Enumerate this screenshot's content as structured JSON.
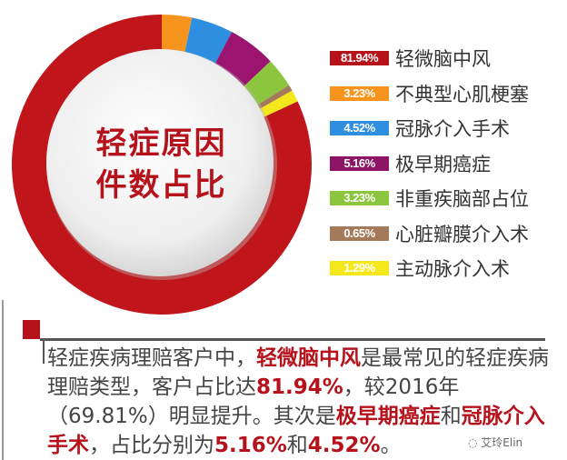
{
  "chart_data": {
    "type": "pie",
    "variant": "donut",
    "title": "轻症原因件数占比",
    "title_lines": [
      "轻症原因",
      "件数占比"
    ],
    "start_angle": "12 o'clock, clockwise",
    "slices": [
      {
        "label": "不典型心肌梗塞",
        "value": 3.23,
        "display": "3.23%",
        "color": "#f7941d"
      },
      {
        "label": "冠脉介入手术",
        "value": 4.52,
        "display": "4.52%",
        "color": "#2e8fe0"
      },
      {
        "label": "极早期癌症",
        "value": 5.16,
        "display": "5.16%",
        "color": "#9b1570"
      },
      {
        "label": "非重疾脑部占位",
        "value": 3.23,
        "display": "3.23%",
        "color": "#8cc63f"
      },
      {
        "label": "心脏瓣膜介入术",
        "value": 0.65,
        "display": "0.65%",
        "color": "#a47a5a"
      },
      {
        "label": "主动脉介入术",
        "value": 1.29,
        "display": "1.29%",
        "color": "#f4e81c"
      },
      {
        "label": "轻微脑中风",
        "value": 81.94,
        "display": "81.94%",
        "color": "#c0161b"
      }
    ],
    "legend": [
      {
        "display": "81.94%",
        "label": "轻微脑中风",
        "color": "#b5121b"
      },
      {
        "display": "3.23%",
        "label": "不典型心肌梗塞",
        "color": "#f7941d"
      },
      {
        "display": "4.52%",
        "label": "冠脉介入手术",
        "color": "#2e8fe0"
      },
      {
        "display": "5.16%",
        "label": "极早期癌症",
        "color": "#8e1466"
      },
      {
        "display": "3.23%",
        "label": "非重疾脑部占位",
        "color": "#8cc63f"
      },
      {
        "display": "0.65%",
        "label": "心脏瓣膜介入术",
        "color": "#a47a5a"
      },
      {
        "display": "1.29%",
        "label": "主动脉介入术",
        "color": "#f4e81c"
      }
    ],
    "legend_position": "right"
  },
  "paragraph": [
    {
      "text": "轻症疾病理赔客户中，",
      "hl": false
    },
    {
      "text": "轻微脑中风",
      "hl": true
    },
    {
      "text": "是最常见的轻症疾病理赔类型，客户占比达",
      "hl": false
    },
    {
      "text": "81.94%",
      "hl": true
    },
    {
      "text": "，较2016年（69.81%）明显提升。其次是",
      "hl": false
    },
    {
      "text": "极早期癌症",
      "hl": true
    },
    {
      "text": "和",
      "hl": false
    },
    {
      "text": "冠脉介入手术",
      "hl": true
    },
    {
      "text": "，占比分别为",
      "hl": false
    },
    {
      "text": "5.16%",
      "hl": true
    },
    {
      "text": "和",
      "hl": false
    },
    {
      "text": "4.52%",
      "hl": true
    },
    {
      "text": "。",
      "hl": false
    }
  ],
  "watermark": "艾玲Elin",
  "colors": {
    "accent": "#b5121b"
  }
}
